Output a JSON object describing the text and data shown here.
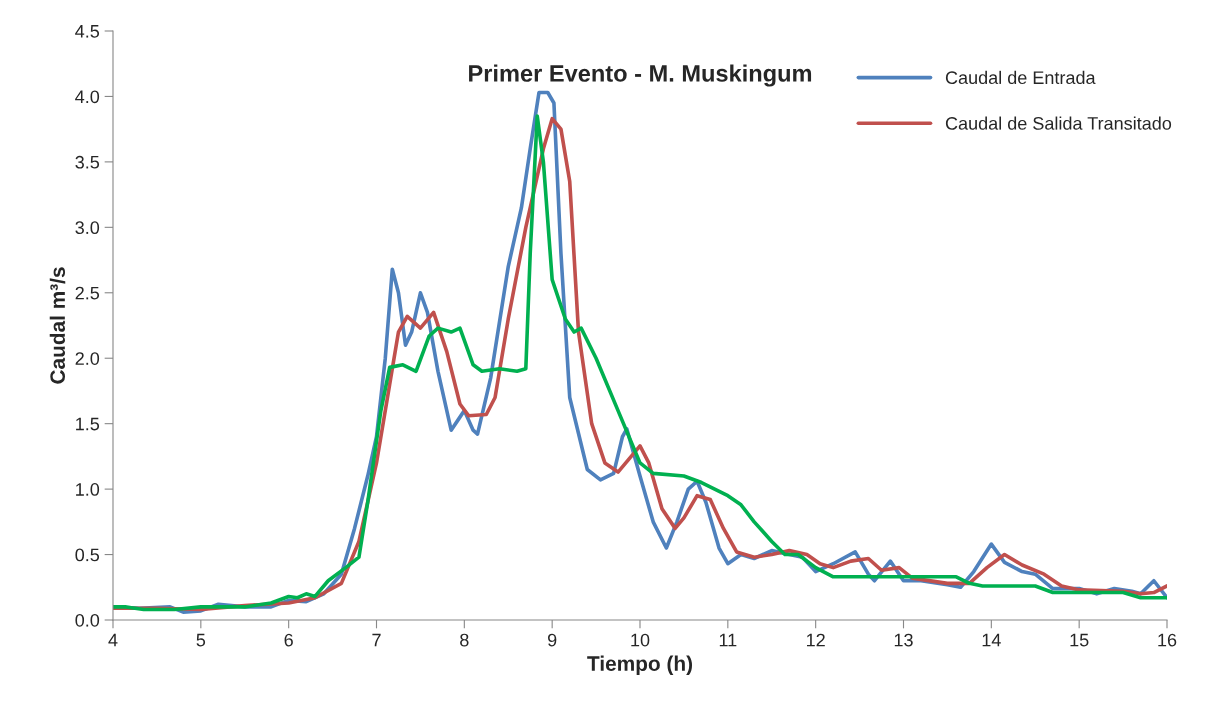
{
  "chart_data": {
    "type": "line",
    "title": "Primer Evento - M. Muskingum",
    "xlabel": "Tiempo (h)",
    "ylabel": "Caudal m³/s",
    "xlim": [
      4,
      16
    ],
    "xticks": [
      4,
      5,
      6,
      7,
      8,
      9,
      10,
      11,
      12,
      13,
      14,
      15,
      16
    ],
    "ylim": [
      0,
      4.5
    ],
    "yticks": [
      {
        "value": 0,
        "label": "0.0"
      },
      0.5,
      {
        "value": 1,
        "label": "1.0"
      },
      1.5,
      {
        "value": 2,
        "label": "2.0"
      },
      2.5,
      {
        "value": 3,
        "label": "3.0"
      },
      3.5,
      {
        "value": 4,
        "label": "4.0"
      },
      4.5
    ],
    "grid": false,
    "legend": "top right",
    "marker": "none",
    "line_style": "solid",
    "series": [
      {
        "name": "Caudal de Entrada",
        "color": "#4f81bd",
        "x": [
          4.0,
          4.3,
          4.65,
          4.8,
          5.0,
          5.2,
          5.5,
          5.8,
          6.0,
          6.2,
          6.4,
          6.6,
          6.75,
          6.9,
          7.0,
          7.1,
          7.18,
          7.25,
          7.33,
          7.4,
          7.5,
          7.58,
          7.7,
          7.85,
          7.95,
          8.0,
          8.1,
          8.15,
          8.3,
          8.5,
          8.65,
          8.75,
          8.85,
          8.95,
          9.02,
          9.1,
          9.2,
          9.4,
          9.55,
          9.7,
          9.8,
          9.85,
          10.0,
          10.15,
          10.3,
          10.42,
          10.55,
          10.65,
          10.75,
          10.9,
          11.0,
          11.15,
          11.3,
          11.5,
          11.85,
          12.0,
          12.2,
          12.45,
          12.6,
          12.67,
          12.85,
          13.0,
          13.2,
          13.5,
          13.65,
          13.8,
          14.0,
          14.15,
          14.35,
          14.5,
          14.7,
          15.0,
          15.2,
          15.4,
          15.6,
          15.7,
          15.85,
          16.0
        ],
        "values": [
          0.1,
          0.09,
          0.1,
          0.06,
          0.07,
          0.12,
          0.1,
          0.1,
          0.15,
          0.14,
          0.2,
          0.35,
          0.7,
          1.1,
          1.4,
          2.0,
          2.68,
          2.5,
          2.1,
          2.2,
          2.5,
          2.35,
          1.9,
          1.45,
          1.55,
          1.6,
          1.45,
          1.42,
          1.85,
          2.7,
          3.15,
          3.6,
          4.03,
          4.03,
          3.95,
          2.8,
          1.7,
          1.15,
          1.07,
          1.12,
          1.4,
          1.46,
          1.1,
          0.75,
          0.55,
          0.75,
          1.0,
          1.06,
          0.9,
          0.55,
          0.43,
          0.5,
          0.47,
          0.53,
          0.48,
          0.37,
          0.43,
          0.52,
          0.35,
          0.3,
          0.45,
          0.3,
          0.3,
          0.27,
          0.25,
          0.37,
          0.58,
          0.44,
          0.37,
          0.35,
          0.24,
          0.24,
          0.2,
          0.24,
          0.22,
          0.2,
          0.3,
          0.17
        ]
      },
      {
        "name": "Caudal de Salida Transitado",
        "color": "#c0504d",
        "x": [
          4.0,
          4.5,
          5.0,
          5.5,
          6.0,
          6.3,
          6.6,
          6.8,
          7.0,
          7.15,
          7.25,
          7.35,
          7.5,
          7.65,
          7.8,
          7.95,
          8.05,
          8.25,
          8.35,
          8.5,
          8.7,
          8.9,
          9.0,
          9.1,
          9.2,
          9.3,
          9.45,
          9.6,
          9.75,
          9.9,
          10.0,
          10.1,
          10.25,
          10.4,
          10.5,
          10.65,
          10.8,
          10.95,
          11.1,
          11.3,
          11.5,
          11.7,
          11.9,
          12.05,
          12.2,
          12.4,
          12.6,
          12.75,
          12.95,
          13.1,
          13.5,
          13.75,
          13.95,
          14.15,
          14.35,
          14.6,
          14.8,
          15.0,
          15.5,
          15.7,
          15.85,
          16.0
        ],
        "values": [
          0.09,
          0.09,
          0.08,
          0.11,
          0.13,
          0.17,
          0.28,
          0.6,
          1.2,
          1.8,
          2.2,
          2.32,
          2.23,
          2.35,
          2.05,
          1.65,
          1.56,
          1.57,
          1.7,
          2.3,
          3.0,
          3.6,
          3.83,
          3.75,
          3.35,
          2.2,
          1.5,
          1.2,
          1.13,
          1.25,
          1.33,
          1.2,
          0.85,
          0.7,
          0.78,
          0.95,
          0.92,
          0.7,
          0.52,
          0.48,
          0.5,
          0.53,
          0.5,
          0.43,
          0.4,
          0.45,
          0.47,
          0.38,
          0.4,
          0.32,
          0.28,
          0.28,
          0.4,
          0.5,
          0.42,
          0.35,
          0.26,
          0.23,
          0.22,
          0.2,
          0.21,
          0.26
        ]
      },
      {
        "color": "#00b050",
        "x": [
          4.0,
          4.15,
          4.35,
          4.7,
          5.0,
          5.5,
          5.8,
          6.0,
          6.1,
          6.2,
          6.3,
          6.45,
          6.65,
          6.8,
          6.9,
          7.05,
          7.15,
          7.3,
          7.45,
          7.6,
          7.7,
          7.85,
          7.95,
          8.1,
          8.2,
          8.4,
          8.6,
          8.7,
          8.75,
          8.83,
          8.9,
          9.0,
          9.15,
          9.25,
          9.33,
          9.5,
          9.75,
          10.0,
          10.15,
          10.5,
          10.7,
          11.0,
          11.15,
          11.3,
          11.5,
          11.65,
          11.8,
          12.0,
          12.2,
          12.5,
          13.0,
          13.3,
          13.6,
          13.75,
          13.9,
          14.5,
          14.7,
          15.0,
          15.5,
          15.7,
          16.0
        ],
        "values": [
          0.1,
          0.1,
          0.08,
          0.08,
          0.1,
          0.1,
          0.13,
          0.18,
          0.17,
          0.2,
          0.18,
          0.3,
          0.4,
          0.48,
          0.9,
          1.6,
          1.93,
          1.95,
          1.9,
          2.17,
          2.23,
          2.2,
          2.23,
          1.95,
          1.9,
          1.92,
          1.9,
          1.92,
          2.8,
          3.85,
          3.5,
          2.6,
          2.3,
          2.2,
          2.23,
          2.0,
          1.6,
          1.2,
          1.12,
          1.1,
          1.05,
          0.95,
          0.88,
          0.75,
          0.6,
          0.5,
          0.5,
          0.4,
          0.33,
          0.33,
          0.33,
          0.33,
          0.33,
          0.28,
          0.26,
          0.26,
          0.21,
          0.21,
          0.21,
          0.17,
          0.17
        ]
      }
    ]
  }
}
